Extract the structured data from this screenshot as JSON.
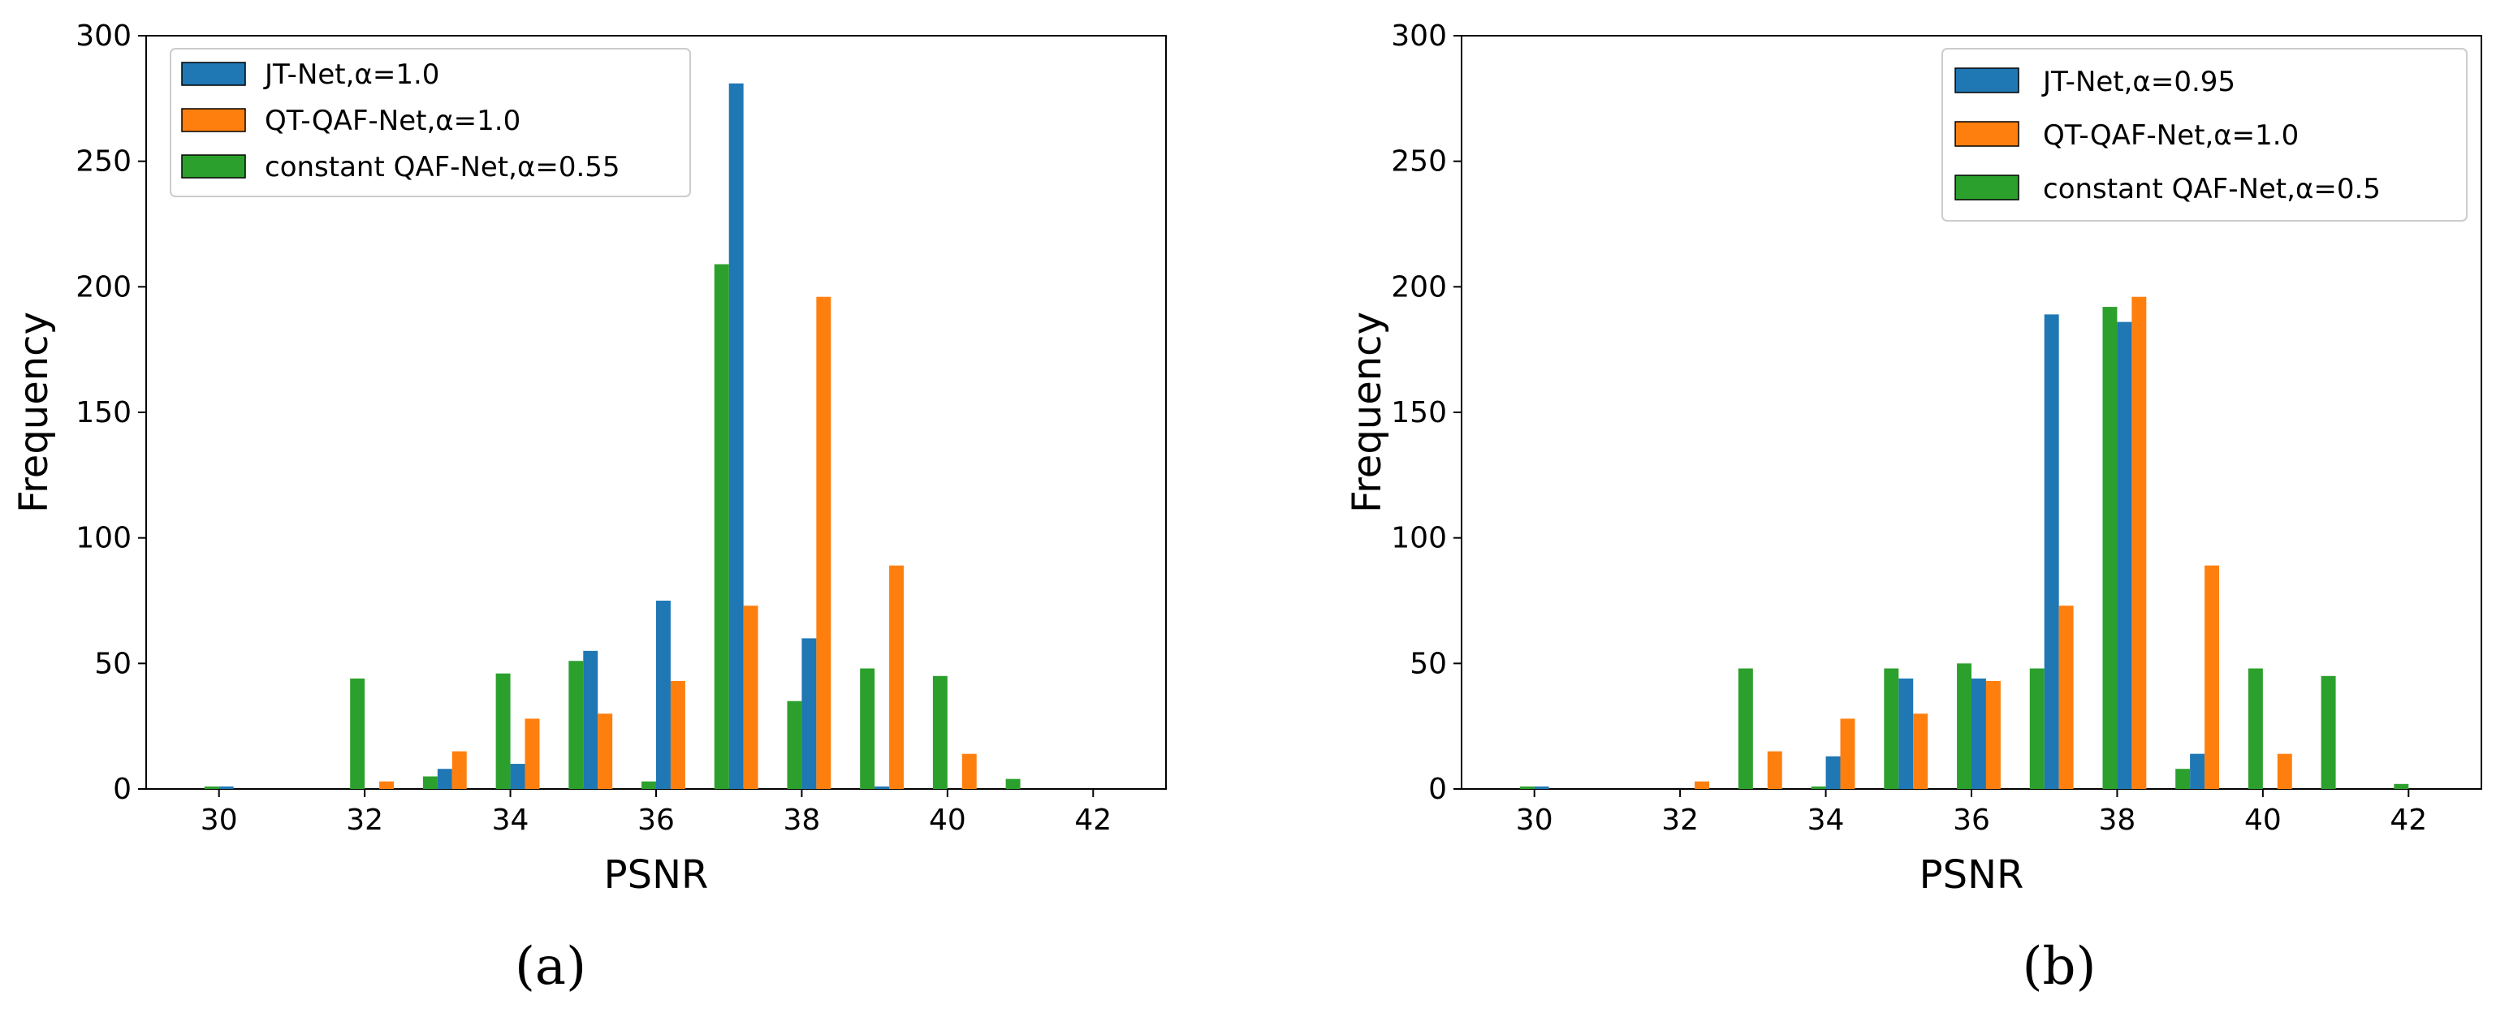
{
  "colors": {
    "series_0": "#1f77b4",
    "series_1": "#ff7f0e",
    "series_2": "#2ca02c"
  },
  "chart_data": [
    {
      "panel_label": "(a)",
      "type": "bar",
      "xlabel": "PSNR",
      "ylabel": "Frequency",
      "xlim": [
        29,
        43
      ],
      "ylim": [
        0,
        300
      ],
      "xticks": [
        30,
        32,
        34,
        36,
        38,
        40,
        42
      ],
      "yticks": [
        0,
        50,
        100,
        150,
        200,
        250,
        300
      ],
      "grid": false,
      "legend": "top-left",
      "series": [
        {
          "name": "JT-Net,α=1.0",
          "x": [
            30.0,
            31.0,
            32.0,
            33.0,
            34.0,
            35.0,
            36.0,
            37.0,
            38.0,
            39.0,
            40.0
          ],
          "values": [
            1,
            0,
            0,
            8,
            10,
            55,
            75,
            281,
            60,
            1,
            0
          ]
        },
        {
          "name": "QT-QAF-Net,α=1.0",
          "x": [
            32.2,
            33.2,
            34.2,
            35.2,
            36.2,
            37.2,
            38.2,
            39.2,
            40.2
          ],
          "values": [
            3,
            15,
            28,
            30,
            43,
            73,
            196,
            89,
            14
          ]
        },
        {
          "name": "constant QAF-Net,α=0.55",
          "x": [
            29.8,
            30.8,
            31.8,
            32.8,
            33.8,
            34.8,
            35.8,
            36.8,
            37.8,
            38.8,
            39.8,
            40.8
          ],
          "values": [
            1,
            0,
            44,
            5,
            46,
            51,
            3,
            209,
            35,
            48,
            45,
            4
          ]
        }
      ]
    },
    {
      "panel_label": "(b)",
      "type": "bar",
      "xlabel": "PSNR",
      "ylabel": "Frequency",
      "xlim": [
        29,
        43
      ],
      "ylim": [
        0,
        300
      ],
      "xticks": [
        30,
        32,
        34,
        36,
        38,
        40,
        42
      ],
      "yticks": [
        0,
        50,
        100,
        150,
        200,
        250,
        300
      ],
      "grid": false,
      "legend": "top-right",
      "series": [
        {
          "name": "JT-Net,α=0.95",
          "x": [
            30.0,
            34.0,
            35.0,
            36.0,
            37.0,
            38.0,
            39.0
          ],
          "values": [
            1,
            13,
            44,
            44,
            189,
            186,
            14
          ]
        },
        {
          "name": "QT-QAF-Net,α=1.0",
          "x": [
            32.2,
            33.2,
            34.2,
            35.2,
            36.2,
            37.2,
            38.2,
            39.2,
            40.2
          ],
          "values": [
            3,
            15,
            28,
            30,
            43,
            73,
            196,
            89,
            14
          ]
        },
        {
          "name": "constant QAF-Net,α=0.5",
          "x": [
            29.8,
            32.8,
            33.8,
            34.8,
            35.8,
            36.8,
            37.8,
            38.8,
            39.8,
            40.8,
            41.8
          ],
          "values": [
            1,
            48,
            1,
            48,
            50,
            48,
            192,
            8,
            48,
            45,
            2
          ]
        }
      ]
    }
  ]
}
